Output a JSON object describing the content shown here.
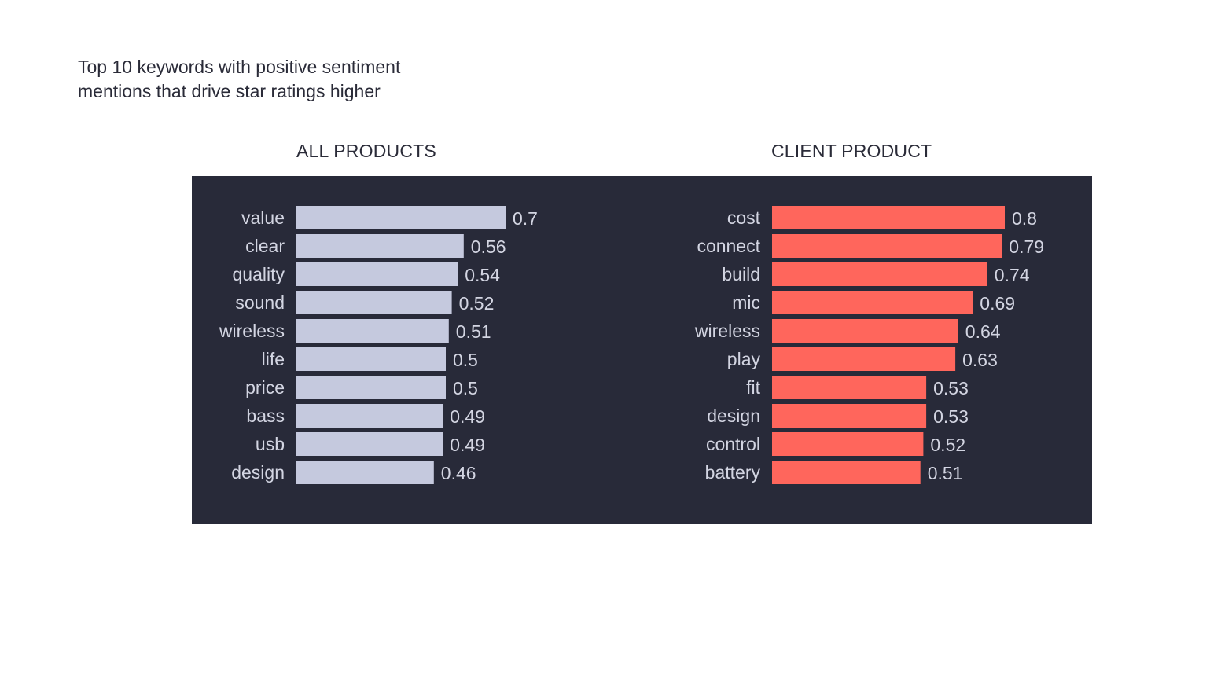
{
  "title_lines": [
    "Top 10 keywords with positive sentiment",
    "mentions that drive star ratings higher"
  ],
  "colors": {
    "panel_background": "#282a39",
    "all_products_bar": "#c5c9de",
    "client_product_bar": "#ff665c",
    "label_text": "#d3d5e2"
  },
  "chart_data": [
    {
      "type": "bar",
      "orientation": "horizontal",
      "title": "ALL PRODUCTS",
      "categories": [
        "value",
        "clear",
        "quality",
        "sound",
        "wireless",
        "life",
        "price",
        "bass",
        "usb",
        "design"
      ],
      "values": [
        0.7,
        0.56,
        0.54,
        0.52,
        0.51,
        0.5,
        0.5,
        0.49,
        0.49,
        0.46
      ],
      "value_labels": [
        "0.7",
        "0.56",
        "0.54",
        "0.52",
        "0.51",
        "0.5",
        "0.5",
        "0.49",
        "0.49",
        "0.46"
      ],
      "color": "#c5c9de",
      "xlim": [
        0,
        0.7
      ]
    },
    {
      "type": "bar",
      "orientation": "horizontal",
      "title": "CLIENT PRODUCT",
      "categories": [
        "cost",
        "connect",
        "build",
        "mic",
        "wireless",
        "play",
        "fit",
        "design",
        "control",
        "battery"
      ],
      "values": [
        0.8,
        0.79,
        0.74,
        0.69,
        0.64,
        0.63,
        0.53,
        0.53,
        0.52,
        0.51
      ],
      "value_labels": [
        "0.8",
        "0.79",
        "0.74",
        "0.69",
        "0.64",
        "0.63",
        "0.53",
        "0.53",
        "0.52",
        "0.51"
      ],
      "color": "#ff665c",
      "xlim": [
        0,
        0.8
      ]
    }
  ]
}
